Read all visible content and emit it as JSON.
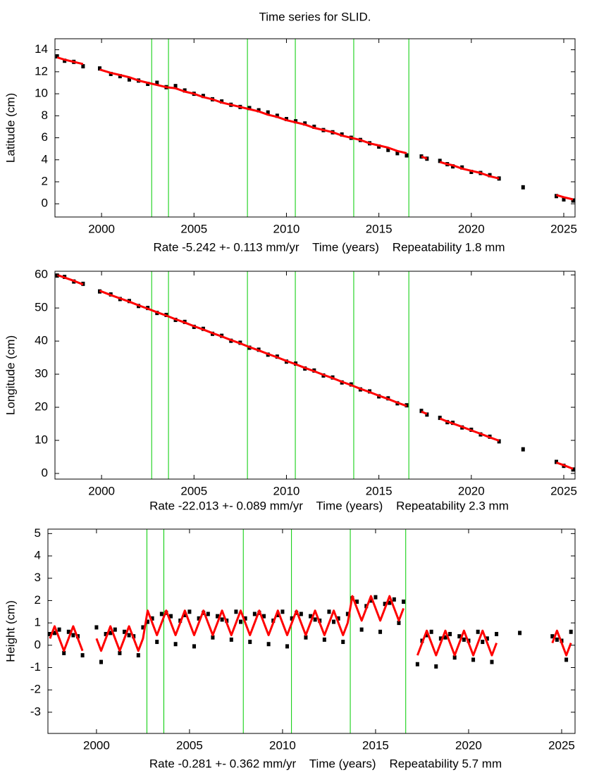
{
  "title": "Time series for SLID.",
  "chart_data": [
    {
      "type": "scatter",
      "ylabel": "Latitude (cm)",
      "xlabel": "Rate -5.242 +- 0.113 mm/yr    Time (years)    Repeatability 1.8 mm",
      "xlim": [
        1997.48,
        2025.61
      ],
      "ylim": [
        -1.2,
        15.0
      ],
      "xticks": [
        2000,
        2005,
        2010,
        2015,
        2020,
        2025
      ],
      "yticks": [
        0,
        2,
        4,
        6,
        8,
        10,
        12,
        14
      ],
      "vlines": [
        2002.71,
        2003.62,
        2007.89,
        2010.48,
        2013.64,
        2016.62
      ],
      "vline_color": "#00cc00",
      "x": [
        1997.6,
        1998.0,
        1998.5,
        1999.0,
        1999.5,
        1999.9,
        2000.5,
        2001.0,
        2001.5,
        2002.0,
        2002.5,
        2003.0,
        2003.5,
        2004.0,
        2004.5,
        2005.0,
        2005.5,
        2006.0,
        2006.5,
        2007.0,
        2007.5,
        2008.0,
        2008.5,
        2009.0,
        2009.5,
        2010.0,
        2010.5,
        2011.0,
        2011.5,
        2012.0,
        2012.5,
        2013.0,
        2013.5,
        2014.0,
        2014.5,
        2015.0,
        2015.5,
        2016.0,
        2016.5,
        2016.9,
        2017.3,
        2017.6,
        2017.9,
        2018.3,
        2018.7,
        2019.0,
        2019.5,
        2020.0,
        2020.5,
        2021.0,
        2021.5,
        2022.2,
        2022.8,
        2023.7,
        2024.6,
        2025.0,
        2025.5
      ],
      "series": [
        {
          "color": "#000000",
          "style": "points",
          "values": [
            13.4,
            13.0,
            12.9,
            12.5,
            null,
            12.3,
            11.8,
            11.6,
            11.3,
            11.2,
            10.9,
            11.0,
            10.6,
            10.7,
            10.3,
            10.0,
            9.8,
            9.5,
            9.3,
            9.0,
            8.8,
            8.7,
            8.5,
            8.3,
            8.0,
            7.7,
            7.5,
            7.3,
            7.0,
            6.7,
            6.5,
            6.3,
            6.0,
            5.8,
            5.5,
            5.2,
            4.9,
            4.6,
            4.4,
            null,
            4.3,
            4.1,
            null,
            3.9,
            3.6,
            3.4,
            3.3,
            2.9,
            2.8,
            2.6,
            2.3,
            null,
            1.5,
            null,
            0.7,
            0.4,
            0.3
          ]
        },
        {
          "color": "#ff0000",
          "style": "line",
          "values": [
            13.3,
            13.1,
            12.9,
            12.7,
            null,
            12.2,
            11.9,
            11.7,
            11.5,
            11.2,
            11.0,
            10.8,
            10.6,
            10.5,
            10.2,
            10.0,
            9.7,
            9.5,
            9.2,
            9.0,
            8.8,
            8.6,
            8.4,
            8.1,
            7.9,
            7.6,
            7.4,
            7.2,
            6.9,
            6.7,
            6.5,
            6.2,
            6.0,
            5.8,
            5.5,
            5.3,
            5.1,
            4.8,
            4.6,
            null,
            4.3,
            4.1,
            null,
            3.8,
            3.6,
            3.5,
            3.2,
            3.0,
            2.8,
            2.5,
            2.3,
            null,
            1.6,
            null,
            0.8,
            0.6,
            0.4
          ]
        }
      ]
    },
    {
      "type": "scatter",
      "ylabel": "Longitude (cm)",
      "xlabel": "Rate -22.013 +- 0.089 mm/yr    Time (years)    Repeatability 2.3 mm",
      "xlim": [
        1997.48,
        2025.61
      ],
      "ylim": [
        -1.7,
        61.1
      ],
      "xticks": [
        2000,
        2005,
        2010,
        2015,
        2020,
        2025
      ],
      "yticks": [
        0,
        10,
        20,
        30,
        40,
        50,
        60
      ],
      "vlines": [
        2002.71,
        2003.62,
        2007.89,
        2010.48,
        2013.64,
        2016.62
      ],
      "vline_color": "#00cc00",
      "x": [
        1997.6,
        1998.0,
        1998.5,
        1999.0,
        1999.5,
        1999.9,
        2000.5,
        2001.0,
        2001.5,
        2002.0,
        2002.5,
        2003.0,
        2003.5,
        2004.0,
        2004.5,
        2005.0,
        2005.5,
        2006.0,
        2006.5,
        2007.0,
        2007.5,
        2008.0,
        2008.5,
        2009.0,
        2009.5,
        2010.0,
        2010.5,
        2011.0,
        2011.5,
        2012.0,
        2012.5,
        2013.0,
        2013.5,
        2014.0,
        2014.5,
        2015.0,
        2015.5,
        2016.0,
        2016.5,
        2016.9,
        2017.3,
        2017.6,
        2017.9,
        2018.3,
        2018.7,
        2019.0,
        2019.5,
        2020.0,
        2020.5,
        2021.0,
        2021.5,
        2022.2,
        2022.8,
        2023.7,
        2024.6,
        2025.0,
        2025.5
      ],
      "series": [
        {
          "color": "#000000",
          "style": "points",
          "values": [
            59.8,
            59.4,
            58.0,
            57.3,
            null,
            55.0,
            54.1,
            52.7,
            52.1,
            50.6,
            50.0,
            48.5,
            47.9,
            46.4,
            45.8,
            44.3,
            43.7,
            42.2,
            41.6,
            40.1,
            39.5,
            38.0,
            37.4,
            35.9,
            35.3,
            33.8,
            33.2,
            31.7,
            31.1,
            29.6,
            29.0,
            27.5,
            26.9,
            25.4,
            24.8,
            23.3,
            22.7,
            21.2,
            20.6,
            null,
            18.9,
            17.8,
            null,
            16.8,
            15.5,
            15.3,
            13.9,
            13.2,
            11.8,
            11.1,
            9.7,
            null,
            7.3,
            null,
            3.5,
            2.3,
            1.2
          ]
        },
        {
          "color": "#ff0000",
          "style": "line",
          "values": [
            60.0,
            59.2,
            58.2,
            57.1,
            null,
            55.2,
            53.9,
            52.9,
            51.9,
            50.8,
            49.8,
            48.7,
            47.7,
            46.6,
            45.6,
            44.5,
            43.5,
            42.4,
            41.4,
            40.3,
            39.3,
            38.2,
            37.2,
            36.1,
            35.1,
            34.0,
            33.0,
            31.9,
            30.9,
            29.8,
            28.8,
            27.7,
            26.7,
            25.6,
            24.6,
            23.5,
            22.5,
            21.4,
            20.4,
            null,
            18.7,
            18.0,
            null,
            16.6,
            15.7,
            15.1,
            14.1,
            13.0,
            12.0,
            10.9,
            9.9,
            null,
            7.1,
            null,
            3.3,
            2.5,
            1.4
          ]
        }
      ]
    },
    {
      "type": "scatter",
      "ylabel": "Height (cm)",
      "xlabel": "Rate -0.281 +- 0.362 mm/yr    Time (years)    Repeatability 5.7 mm",
      "xlim": [
        1997.39,
        2025.72
      ],
      "ylim": [
        -3.95,
        5.2
      ],
      "xticks": [
        2000,
        2005,
        2010,
        2015,
        2020,
        2025
      ],
      "yticks": [
        -3,
        -2,
        -1,
        0,
        1,
        2,
        3,
        4,
        5
      ],
      "vlines": [
        2002.71,
        2003.62,
        2007.89,
        2010.48,
        2013.64,
        2016.62
      ],
      "vline_color": "#00cc00",
      "x": [
        1997.5,
        1997.75,
        1998.0,
        1998.25,
        1998.5,
        1998.75,
        1999.0,
        1999.25,
        1999.6,
        2000.0,
        2000.25,
        2000.5,
        2000.75,
        2001.0,
        2001.25,
        2001.5,
        2001.75,
        2002.0,
        2002.25,
        2002.5,
        2002.75,
        2003.0,
        2003.25,
        2003.5,
        2003.75,
        2004.0,
        2004.25,
        2004.5,
        2004.75,
        2005.0,
        2005.25,
        2005.5,
        2005.75,
        2006.0,
        2006.25,
        2006.5,
        2006.75,
        2007.0,
        2007.25,
        2007.5,
        2007.75,
        2008.0,
        2008.25,
        2008.5,
        2008.75,
        2009.0,
        2009.25,
        2009.5,
        2009.75,
        2010.0,
        2010.25,
        2010.5,
        2010.75,
        2011.0,
        2011.25,
        2011.5,
        2011.75,
        2012.0,
        2012.25,
        2012.5,
        2012.75,
        2013.0,
        2013.25,
        2013.5,
        2013.75,
        2014.0,
        2014.25,
        2014.5,
        2014.75,
        2015.0,
        2015.25,
        2015.5,
        2015.75,
        2016.0,
        2016.25,
        2016.5,
        2016.9,
        2017.25,
        2017.5,
        2017.75,
        2018.0,
        2018.25,
        2018.5,
        2018.75,
        2019.0,
        2019.25,
        2019.5,
        2019.75,
        2020.0,
        2020.25,
        2020.5,
        2020.75,
        2021.0,
        2021.25,
        2021.5,
        2022.2,
        2022.75,
        2023.7,
        2024.5,
        2024.75,
        2025.0,
        2025.25,
        2025.5
      ],
      "series": [
        {
          "color": "#000000",
          "style": "points",
          "values": [
            0.5,
            0.55,
            0.7,
            -0.35,
            0.6,
            0.45,
            0.4,
            -0.45,
            null,
            0.8,
            -0.75,
            0.5,
            0.55,
            0.7,
            -0.35,
            0.6,
            0.45,
            0.4,
            -0.45,
            0.8,
            1.05,
            1.2,
            0.15,
            1.4,
            1.45,
            1.3,
            0.05,
            1.1,
            1.35,
            1.5,
            -0.05,
            1.2,
            1.45,
            1.4,
            0.35,
            1.3,
            1.15,
            1.1,
            0.25,
            1.5,
            1.05,
            1.2,
            0.15,
            1.4,
            1.45,
            1.3,
            0.05,
            1.1,
            1.35,
            1.5,
            -0.05,
            1.2,
            1.45,
            1.4,
            0.35,
            1.3,
            1.15,
            1.1,
            0.25,
            1.5,
            1.05,
            1.2,
            0.15,
            1.4,
            2.1,
            1.95,
            0.7,
            1.75,
            2.0,
            2.15,
            0.6,
            1.85,
            1.9,
            2.05,
            1.0,
            1.95,
            null,
            -0.85,
            0.2,
            0.45,
            0.6,
            -0.95,
            0.3,
            0.35,
            0.5,
            -0.55,
            0.4,
            0.25,
            0.2,
            -0.65,
            0.6,
            0.15,
            0.3,
            -0.75,
            0.5,
            null,
            0.55,
            null,
            0.4,
            0.25,
            0.2,
            -0.65,
            0.6
          ]
        },
        {
          "color": "#ff0000",
          "style": "line",
          "values": [
            0.3,
            0.85,
            0.3,
            -0.25,
            0.3,
            0.85,
            0.3,
            -0.25,
            null,
            0.3,
            -0.25,
            0.3,
            0.85,
            0.3,
            -0.25,
            0.3,
            0.85,
            0.3,
            -0.25,
            0.3,
            1.55,
            1.0,
            0.45,
            1.0,
            1.55,
            1.0,
            0.45,
            1.0,
            1.55,
            1.0,
            0.45,
            1.0,
            1.55,
            1.0,
            0.45,
            1.0,
            1.55,
            1.0,
            0.45,
            1.0,
            1.55,
            1.0,
            0.45,
            1.0,
            1.55,
            1.0,
            0.45,
            1.0,
            1.55,
            1.0,
            0.45,
            1.0,
            1.55,
            1.0,
            0.45,
            1.0,
            1.55,
            1.0,
            0.45,
            1.0,
            1.55,
            1.0,
            0.45,
            1.0,
            2.2,
            1.65,
            1.1,
            1.65,
            2.2,
            1.65,
            1.1,
            1.65,
            2.2,
            1.65,
            1.1,
            1.65,
            null,
            -0.45,
            0.1,
            0.65,
            0.1,
            -0.45,
            0.1,
            0.65,
            0.1,
            -0.45,
            0.1,
            0.65,
            0.1,
            -0.45,
            0.1,
            0.65,
            0.1,
            -0.45,
            0.1,
            null,
            0.65,
            null,
            0.1,
            0.65,
            0.1,
            -0.45,
            0.1
          ]
        }
      ]
    }
  ]
}
